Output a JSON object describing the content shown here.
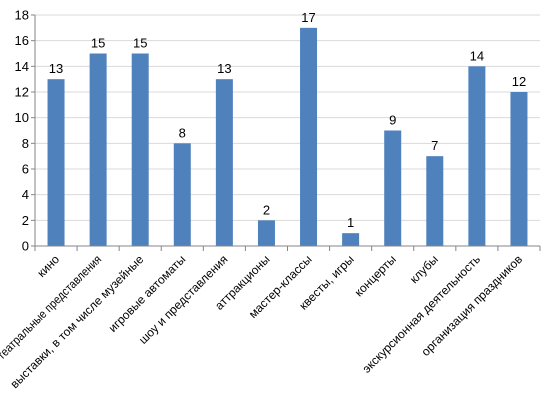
{
  "chart_data": {
    "type": "bar",
    "title": "",
    "xlabel": "",
    "ylabel": "",
    "ylim": [
      0,
      18
    ],
    "yticks": [
      0,
      2,
      4,
      6,
      8,
      10,
      12,
      14,
      16,
      18
    ],
    "grid": true,
    "legend": "none",
    "bar_color": "#4F81BD",
    "grid_color": "#D9D9D9",
    "axis_color": "#868686",
    "categories": [
      "кино",
      "театральные представления",
      "выставки, в том числе музейные",
      "игровые автоматы",
      "шоу и представления",
      "аттракционы",
      "мастер-классы",
      "квесты, игры",
      "концерты",
      "клубы",
      "экскурсионная деятельность",
      "организация праздников"
    ],
    "values": [
      13,
      15,
      15,
      8,
      13,
      2,
      17,
      1,
      9,
      7,
      14,
      12
    ],
    "data_labels": [
      "13",
      "15",
      "15",
      "8",
      "13",
      "2",
      "17",
      "1",
      "9",
      "7",
      "14",
      "12"
    ]
  }
}
